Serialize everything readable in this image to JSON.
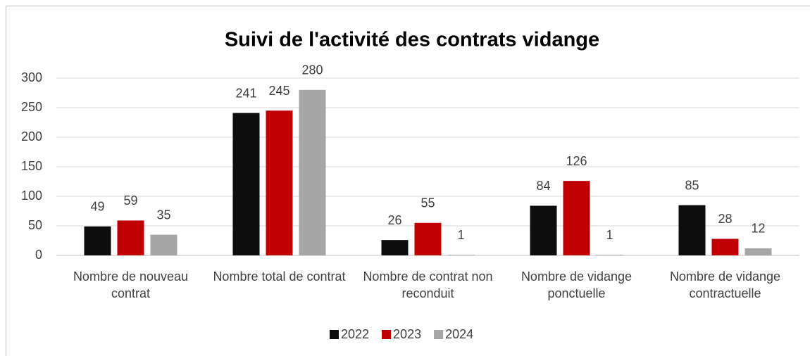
{
  "chart_data": {
    "type": "bar",
    "title": "Suivi de l'activité des contrats vidange",
    "categories": [
      "Nombre de nouveau contrat",
      "Nombre total de contrat",
      "Nombre de contrat non reconduit",
      "Nombre de vidange ponctuelle",
      "Nombre de vidange contractuelle"
    ],
    "series": [
      {
        "name": "2022",
        "color": "#0d0d0d",
        "values": [
          49,
          241,
          26,
          84,
          85
        ]
      },
      {
        "name": "2023",
        "color": "#c00000",
        "values": [
          59,
          245,
          55,
          126,
          28
        ]
      },
      {
        "name": "2024",
        "color": "#a6a6a6",
        "values": [
          35,
          280,
          1,
          1,
          12
        ]
      }
    ],
    "ylim": [
      0,
      300
    ],
    "yticks": [
      0,
      50,
      100,
      150,
      200,
      250,
      300
    ],
    "grid": true,
    "legend": "bottom"
  }
}
